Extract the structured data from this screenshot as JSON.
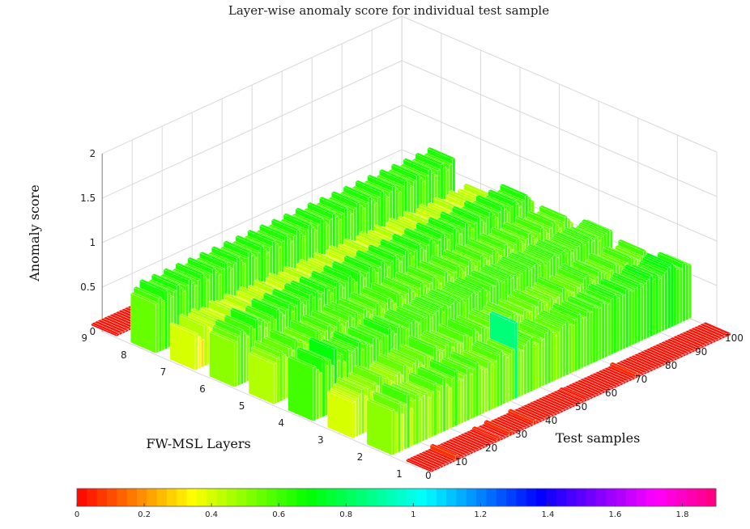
{
  "chart_data": {
    "type": "bar3d",
    "title": "Layer-wise anomaly score for individual test sample",
    "xlabel": "Test samples",
    "ylabel": "FW-MSL Layers",
    "zlabel": "Anomaly score",
    "x_ticks": [
      "0",
      "10",
      "20",
      "30",
      "40",
      "50",
      "60",
      "70",
      "80",
      "90",
      "100"
    ],
    "y_ticks": [
      "1",
      "2",
      "3",
      "4",
      "5",
      "6",
      "7",
      "8",
      "9"
    ],
    "z_ticks": [
      "0",
      "0.5",
      "1",
      "1.5",
      "2"
    ],
    "zlim": [
      0,
      2
    ],
    "colorbar": {
      "ticks": [
        "0",
        "0.2",
        "0.4",
        "0.6",
        "0.8",
        "1",
        "1.2",
        "1.4",
        "1.6",
        "1.8"
      ],
      "range": [
        0,
        1.9
      ],
      "colormap": "hsv"
    },
    "grid": true,
    "series": [
      {
        "layer": 1,
        "values": [
          0,
          0,
          0,
          0.01,
          0,
          0,
          0,
          0,
          0.06,
          0,
          0,
          0,
          0,
          0,
          0,
          0,
          0,
          0,
          0.02,
          0,
          0,
          0,
          0.04,
          0,
          0,
          0,
          0.05,
          0,
          0,
          0,
          0,
          0,
          0,
          0,
          0.05,
          0,
          0,
          0,
          0,
          0,
          0,
          0,
          0,
          0,
          0,
          0,
          0,
          0,
          0,
          0,
          0,
          0.03,
          0,
          0,
          0,
          0,
          0,
          0,
          0,
          0,
          0,
          0,
          0,
          0,
          0,
          0,
          0,
          0,
          0.05,
          0,
          0,
          0,
          0,
          0,
          0,
          0,
          0,
          0,
          0,
          0,
          0,
          0,
          0,
          0,
          0,
          0,
          0,
          0,
          0,
          0,
          0,
          0,
          0,
          0,
          0,
          0,
          0,
          0,
          0,
          0
        ]
      },
      {
        "layer": 2,
        "values": [
          0.5,
          0.45,
          0.55,
          0.4,
          0.5,
          0.6,
          0.42,
          0.5,
          0.55,
          0.48,
          0.5,
          0.52,
          0.45,
          0.5,
          0.58,
          0.47,
          0.52,
          0.6,
          0.5,
          0.45,
          0.55,
          0.62,
          0.5,
          0.48,
          0.52,
          0.58,
          0.5,
          0.55,
          0.6,
          0.52,
          0.5,
          0.48,
          0.55,
          0.5,
          0.52,
          0.58,
          0.6,
          0.55,
          0.5,
          0.52,
          0.56,
          0.85,
          0.52,
          0.5,
          0.55,
          0.58,
          0.6,
          0.52,
          0.5,
          0.55,
          0.52,
          0.58,
          0.6,
          0.55,
          0.5,
          0.52,
          0.56,
          0.58,
          0.6,
          0.55,
          0.52,
          0.58,
          0.62,
          0.56,
          0.55,
          0.6,
          0.58,
          0.62,
          0.6,
          0.58,
          0.62,
          0.6,
          0.58,
          0.62,
          0.65,
          0.6,
          0.62,
          0.6,
          0.65,
          0.62,
          0.6,
          0.62,
          0.65,
          0.6,
          0.62,
          0.65,
          0.68,
          0.62,
          0.65,
          0.6,
          0.62,
          0.65,
          0.68,
          0.7,
          0.65,
          0.62,
          0.6,
          0.65,
          0.62,
          0.6
        ]
      },
      {
        "layer": 3,
        "values": [
          0.4,
          0.42,
          0.45,
          0.5,
          0.4,
          0.48,
          0.42,
          0.5,
          0.45,
          0.55,
          0.4,
          0.5,
          0.45,
          0.42,
          0.48,
          0.5,
          0.45,
          0.55,
          0.5,
          0.48,
          0.52,
          0.55,
          0.5,
          0.45,
          0.55,
          0.52,
          0.5,
          0.6,
          0.55,
          0.5,
          0.52,
          0.56,
          0.58,
          0.5,
          0.55,
          0.52,
          0.5,
          0.58,
          0.55,
          0.52,
          0.6,
          0.55,
          0.5,
          0.58,
          0.55,
          0.52,
          0.5,
          0.56,
          0.58,
          0.55,
          0.5,
          0.52,
          0.55,
          0.58,
          0.55,
          0.52,
          0.5,
          0.55,
          0.52,
          0.5,
          0.55,
          0.52,
          0.58,
          0.55,
          0.5,
          0.52,
          0.55,
          0.5,
          0.52,
          0.55,
          0.6,
          0.55,
          0.52,
          0.5,
          0.55,
          0.52,
          0.55,
          0.6,
          0.62,
          0.55,
          0.52,
          0.55,
          0.6,
          0.58,
          0.55,
          0.52,
          0.55,
          0.6,
          0.58,
          0.55,
          0.5,
          0.55,
          0.6,
          0.58,
          0.55,
          0.52,
          0.55,
          0.6,
          0.55,
          0.5
        ]
      },
      {
        "layer": 4,
        "values": [
          0.6,
          0.55,
          0.5,
          0.65,
          0.55,
          0.6,
          0.52,
          0.7,
          0.55,
          0.6,
          0.5,
          0.62,
          0.55,
          0.58,
          0.6,
          0.65,
          0.55,
          0.6,
          0.58,
          0.55,
          0.62,
          0.6,
          0.55,
          0.6,
          0.58,
          0.65,
          0.6,
          0.55,
          0.62,
          0.6,
          0.58,
          0.55,
          0.6,
          0.62,
          0.58,
          0.55,
          0.6,
          0.58,
          0.6,
          0.55,
          0.58,
          0.6,
          0.62,
          0.55,
          0.6,
          0.58,
          0.6,
          0.62,
          0.58,
          0.6,
          0.55,
          0.58,
          0.6,
          0.62,
          0.58,
          0.6,
          0.62,
          0.58,
          0.55,
          0.6,
          0.58,
          0.62,
          0.6,
          0.58,
          0.6,
          0.62,
          0.58,
          0.6,
          0.55,
          0.58,
          0.6,
          0.62,
          0.58,
          0.6,
          0.62,
          0.58,
          0.6,
          0.55,
          0.58,
          0.6,
          0.62,
          0.58,
          0.6,
          0.62,
          0.58,
          0.6,
          0.55,
          0.58,
          0.6,
          0.62,
          0.58,
          0.6,
          0.62,
          0.58,
          0.6,
          0.55,
          0.58,
          0.6,
          0.62,
          0.6
        ]
      },
      {
        "layer": 5,
        "values": [
          0.45,
          0.5,
          0.55,
          0.5,
          0.45,
          0.55,
          0.5,
          0.6,
          0.5,
          0.55,
          0.45,
          0.5,
          0.55,
          0.5,
          0.6,
          0.55,
          0.5,
          0.55,
          0.6,
          0.5,
          0.55,
          0.6,
          0.55,
          0.5,
          0.55,
          0.6,
          0.55,
          0.6,
          0.5,
          0.55,
          0.6,
          0.55,
          0.5,
          0.55,
          0.6,
          0.55,
          0.5,
          0.55,
          0.6,
          0.55,
          0.5,
          0.6,
          0.55,
          0.5,
          0.55,
          0.6,
          0.55,
          0.5,
          0.55,
          0.6,
          0.55,
          0.5,
          0.55,
          0.6,
          0.55,
          0.5,
          0.55,
          0.6,
          0.55,
          0.5,
          0.55,
          0.6,
          0.55,
          0.5,
          0.55,
          0.6,
          0.55,
          0.5,
          0.55,
          0.6,
          0.55,
          0.5,
          0.55,
          0.6,
          0.55,
          0.5,
          0.55,
          0.6,
          0.55,
          0.5,
          0.55,
          0.6,
          0.55,
          0.5,
          0.55,
          0.6,
          0.55,
          0.5,
          0.55,
          0.6,
          0.55,
          0.5,
          0.55,
          0.6,
          0.55,
          0.5,
          0.55,
          0.6,
          0.55,
          0.5
        ]
      },
      {
        "layer": 6,
        "values": [
          0.5,
          0.55,
          0.6,
          0.55,
          0.5,
          0.6,
          0.55,
          0.65,
          0.55,
          0.6,
          0.5,
          0.55,
          0.6,
          0.55,
          0.65,
          0.6,
          0.55,
          0.6,
          0.65,
          0.55,
          0.6,
          0.65,
          0.6,
          0.55,
          0.6,
          0.65,
          0.6,
          0.65,
          0.55,
          0.6,
          0.65,
          0.6,
          0.55,
          0.6,
          0.65,
          0.6,
          0.55,
          0.6,
          0.65,
          0.6,
          0.55,
          0.65,
          0.6,
          0.55,
          0.6,
          0.65,
          0.6,
          0.55,
          0.6,
          0.65,
          0.6,
          0.55,
          0.6,
          0.65,
          0.6,
          0.55,
          0.6,
          0.65,
          0.6,
          0.55,
          0.6,
          0.65,
          0.6,
          0.55,
          0.6,
          0.65,
          0.6,
          0.55,
          0.6,
          0.65,
          0.6,
          0.55,
          0.6,
          0.65,
          0.6,
          0.55,
          0.6,
          0.65,
          0.6,
          0.55,
          0.6,
          0.65,
          0.6,
          0.55,
          0.6,
          0.65,
          0.6,
          0.55,
          0.6,
          0.65,
          0.6,
          0.55,
          0.6,
          0.65,
          0.6,
          0.55,
          0.6,
          0.65,
          0.6,
          0.55
        ]
      },
      {
        "layer": 7,
        "values": [
          0.4,
          0.35,
          0.3,
          0.45,
          0.4,
          0.38,
          0.42,
          0.45,
          0.4,
          0.35,
          0.42,
          0.4,
          0.38,
          0.45,
          0.4,
          0.42,
          0.38,
          0.4,
          0.45,
          0.42,
          0.4,
          0.38,
          0.42,
          0.45,
          0.4,
          0.38,
          0.42,
          0.4,
          0.45,
          0.42,
          0.4,
          0.38,
          0.42,
          0.45,
          0.4,
          0.38,
          0.42,
          0.4,
          0.45,
          0.42,
          0.4,
          0.38,
          0.42,
          0.45,
          0.4,
          0.38,
          0.42,
          0.4,
          0.45,
          0.42,
          0.4,
          0.38,
          0.42,
          0.45,
          0.4,
          0.38,
          0.42,
          0.4,
          0.45,
          0.42,
          0.4,
          0.38,
          0.42,
          0.45,
          0.4,
          0.38,
          0.42,
          0.4,
          0.45,
          0.42,
          0.4,
          0.38,
          0.42,
          0.45,
          0.4,
          0.38,
          0.42,
          0.4,
          0.45,
          0.42,
          0.4,
          0.38,
          0.42,
          0.45,
          0.4,
          0.38,
          0.42,
          0.4,
          0.45,
          0.42,
          0.4,
          0.38,
          0.42,
          0.45,
          0.4,
          0.38,
          0.42,
          0.4,
          0.45,
          0.42
        ]
      },
      {
        "layer": 8,
        "values": [
          0.55,
          0.6,
          0.55,
          0.65,
          0.6,
          0.55,
          0.6,
          0.65,
          0.6,
          0.55,
          0.6,
          0.65,
          0.6,
          0.55,
          0.6,
          0.65,
          0.6,
          0.55,
          0.6,
          0.65,
          0.6,
          0.55,
          0.6,
          0.65,
          0.6,
          0.55,
          0.6,
          0.65,
          0.6,
          0.55,
          0.6,
          0.65,
          0.6,
          0.55,
          0.6,
          0.65,
          0.6,
          0.55,
          0.6,
          0.65,
          0.6,
          0.55,
          0.6,
          0.65,
          0.6,
          0.55,
          0.6,
          0.65,
          0.6,
          0.55,
          0.6,
          0.65,
          0.6,
          0.55,
          0.6,
          0.65,
          0.6,
          0.55,
          0.6,
          0.65,
          0.6,
          0.55,
          0.6,
          0.65,
          0.6,
          0.55,
          0.6,
          0.65,
          0.6,
          0.55,
          0.6,
          0.65,
          0.6,
          0.55,
          0.6,
          0.65,
          0.6,
          0.55,
          0.6,
          0.65,
          0.6,
          0.55,
          0.6,
          0.65,
          0.6,
          0.55,
          0.6,
          0.65,
          0.6,
          0.55,
          0.6,
          0.65,
          0.6,
          0.55,
          0.6,
          0.65,
          0.6,
          0.55,
          0.6,
          0.65
        ]
      },
      {
        "layer": 9,
        "values": [
          0,
          0,
          0,
          0,
          0,
          0,
          0,
          0,
          0,
          0,
          0,
          0,
          0,
          0,
          0,
          0,
          0,
          0,
          0,
          0,
          0,
          0,
          0,
          0,
          0,
          0,
          0,
          0,
          0,
          0,
          0,
          0,
          0,
          0,
          0,
          0,
          0,
          0,
          0,
          0,
          0,
          0,
          0,
          0,
          0,
          0,
          0,
          0,
          0,
          0,
          0,
          0,
          0,
          0,
          0,
          0,
          0,
          0,
          0,
          0,
          0,
          0,
          0,
          0,
          0,
          0,
          0,
          0,
          0,
          0,
          0,
          0,
          0,
          0,
          0,
          0,
          0,
          0,
          0,
          0,
          0,
          0,
          0,
          0,
          0,
          0,
          0,
          0,
          0,
          0,
          0,
          0,
          0,
          0,
          0,
          0,
          0,
          0,
          0,
          0
        ]
      }
    ]
  }
}
